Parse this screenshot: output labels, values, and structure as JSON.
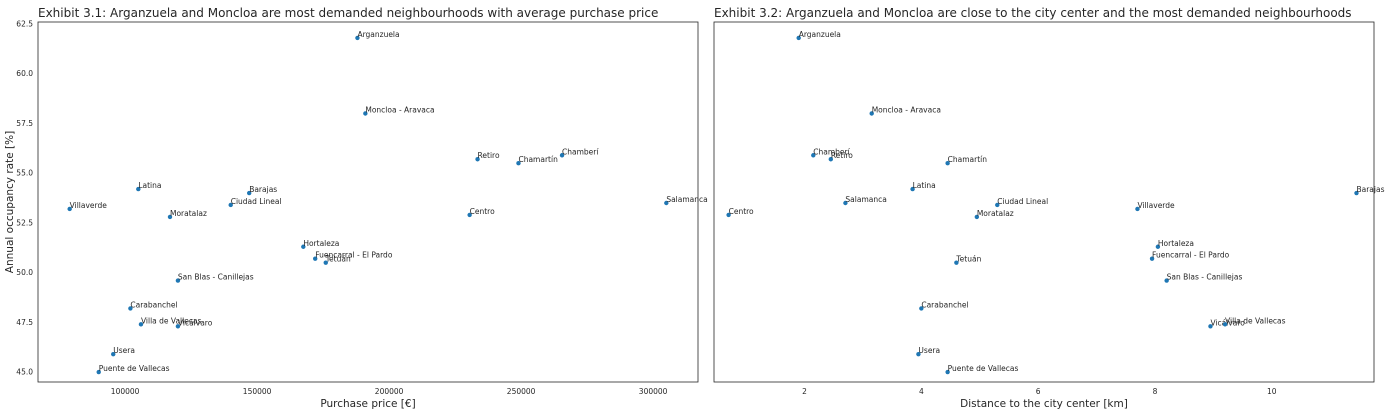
{
  "chart_data": [
    {
      "type": "scatter",
      "title": "Exhibit 3.1: Arganzuela and Moncloa are most demanded neighbourhoods with average purchase price",
      "xlabel": "Purchase price [€]",
      "ylabel": "Annual occupancy rate [%]",
      "xlim": [
        67000,
        317000
      ],
      "ylim": [
        44.5,
        62.6
      ],
      "xticks": [
        100000,
        150000,
        200000,
        250000,
        300000
      ],
      "xtick_labels": [
        "100000",
        "150000",
        "200000",
        "250000",
        "300000"
      ],
      "yticks": [
        45.0,
        47.5,
        50.0,
        52.5,
        55.0,
        57.5,
        60.0,
        62.5
      ],
      "ytick_labels": [
        "45.0",
        "47.5",
        "50.0",
        "52.5",
        "55.0",
        "57.5",
        "60.0",
        "62.5"
      ],
      "grid": false,
      "points": [
        {
          "label": "Arganzuela",
          "x": 188000,
          "y": 61.8
        },
        {
          "label": "Moncloa - Aravaca",
          "x": 191000,
          "y": 58.0
        },
        {
          "label": "Retiro",
          "x": 233500,
          "y": 55.7
        },
        {
          "label": "Chamartín",
          "x": 249000,
          "y": 55.5
        },
        {
          "label": "Chamberí",
          "x": 265500,
          "y": 55.9
        },
        {
          "label": "Salamanca",
          "x": 305000,
          "y": 53.5
        },
        {
          "label": "Centro",
          "x": 230500,
          "y": 52.9
        },
        {
          "label": "Latina",
          "x": 105000,
          "y": 54.2
        },
        {
          "label": "Barajas",
          "x": 147000,
          "y": 54.0
        },
        {
          "label": "Ciudad Lineal",
          "x": 140000,
          "y": 53.4
        },
        {
          "label": "Villaverde",
          "x": 79000,
          "y": 53.2
        },
        {
          "label": "Moratalaz",
          "x": 117000,
          "y": 52.8
        },
        {
          "label": "Hortaleza",
          "x": 167500,
          "y": 51.3
        },
        {
          "label": "Fuencarral - El Pardo",
          "x": 172000,
          "y": 50.7
        },
        {
          "label": "Tetuán",
          "x": 176000,
          "y": 50.5
        },
        {
          "label": "San Blas - Canillejas",
          "x": 120000,
          "y": 49.6
        },
        {
          "label": "Carabanchel",
          "x": 102000,
          "y": 48.2
        },
        {
          "label": "Villa de Vallecas",
          "x": 106000,
          "y": 47.4
        },
        {
          "label": "Vicálvaro",
          "x": 120000,
          "y": 47.3
        },
        {
          "label": "Usera",
          "x": 95500,
          "y": 45.9
        },
        {
          "label": "Puente de Vallecas",
          "x": 90000,
          "y": 45.0
        }
      ]
    },
    {
      "type": "scatter",
      "title": "Exhibit 3.2: Arganzuela and Moncloa are close to the city center and the most demanded neighbourhoods",
      "xlabel": "Distance to the city center [km]",
      "ylabel": "",
      "xlim": [
        0.45,
        11.75
      ],
      "ylim": [
        44.5,
        62.6
      ],
      "xticks": [
        2,
        4,
        6,
        8,
        10
      ],
      "xtick_labels": [
        "2",
        "4",
        "6",
        "8",
        "10"
      ],
      "yticks": [],
      "ytick_labels": [],
      "grid": false,
      "points": [
        {
          "label": "Arganzuela",
          "x": 1.9,
          "y": 61.8
        },
        {
          "label": "Moncloa - Aravaca",
          "x": 3.15,
          "y": 58.0
        },
        {
          "label": "Chamberí",
          "x": 2.15,
          "y": 55.9
        },
        {
          "label": "Retiro",
          "x": 2.45,
          "y": 55.7
        },
        {
          "label": "Chamartín",
          "x": 4.45,
          "y": 55.5
        },
        {
          "label": "Latina",
          "x": 3.85,
          "y": 54.2
        },
        {
          "label": "Salamanca",
          "x": 2.7,
          "y": 53.5
        },
        {
          "label": "Ciudad Lineal",
          "x": 5.3,
          "y": 53.4
        },
        {
          "label": "Villaverde",
          "x": 7.7,
          "y": 53.2
        },
        {
          "label": "Barajas",
          "x": 11.45,
          "y": 54.0
        },
        {
          "label": "Centro",
          "x": 0.7,
          "y": 52.9
        },
        {
          "label": "Moratalaz",
          "x": 4.95,
          "y": 52.8
        },
        {
          "label": "Hortaleza",
          "x": 8.05,
          "y": 51.3
        },
        {
          "label": "Fuencarral - El Pardo",
          "x": 7.95,
          "y": 50.7
        },
        {
          "label": "Tetuán",
          "x": 4.6,
          "y": 50.5
        },
        {
          "label": "San Blas - Canillejas",
          "x": 8.2,
          "y": 49.6
        },
        {
          "label": "Carabanchel",
          "x": 4.0,
          "y": 48.2
        },
        {
          "label": "Vicálvaro",
          "x": 8.95,
          "y": 47.3
        },
        {
          "label": "Villa de Vallecas",
          "x": 9.2,
          "y": 47.4
        },
        {
          "label": "Usera",
          "x": 3.95,
          "y": 45.9
        },
        {
          "label": "Puente de Vallecas",
          "x": 4.45,
          "y": 45.0
        }
      ]
    }
  ]
}
